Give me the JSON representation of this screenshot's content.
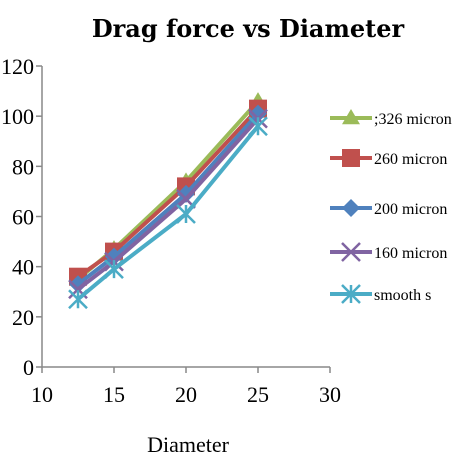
{
  "chart_data": {
    "type": "line",
    "title": "Drag force vs Diameter",
    "xlabel": "Diameter",
    "ylabel": "",
    "xlim": [
      10,
      30
    ],
    "ylim": [
      0,
      120
    ],
    "x_ticks": [
      10,
      15,
      20,
      25,
      30
    ],
    "y_ticks": [
      0,
      20,
      40,
      60,
      80,
      100,
      120
    ],
    "y_tick_labels": [
      "0",
      "20",
      "40",
      "60",
      "80",
      "100",
      "120"
    ],
    "legend_position": "right",
    "grid": false,
    "series": [
      {
        "name": ";326 micron",
        "x": [
          12.5,
          15,
          20,
          25
        ],
        "values": [
          35,
          47,
          74,
          106
        ],
        "color": "#9bbb59",
        "marker": "triangle"
      },
      {
        "name": "260 micron",
        "x": [
          12.5,
          15,
          20,
          25
        ],
        "values": [
          36,
          46,
          72,
          103
        ],
        "color": "#c0504d",
        "marker": "square"
      },
      {
        "name": "200 micron",
        "x": [
          12.5,
          15,
          20,
          25
        ],
        "values": [
          33,
          44,
          69,
          101
        ],
        "color": "#4f81bd",
        "marker": "diamond"
      },
      {
        "name": "160 micron",
        "x": [
          12.5,
          15,
          20,
          25
        ],
        "values": [
          31,
          42,
          67,
          99
        ],
        "color": "#8064a2",
        "marker": "x"
      },
      {
        "name": "smooth s",
        "x": [
          12.5,
          15,
          20,
          25
        ],
        "values": [
          27,
          39,
          61,
          96
        ],
        "color": "#4bacc6",
        "marker": "star"
      }
    ]
  }
}
